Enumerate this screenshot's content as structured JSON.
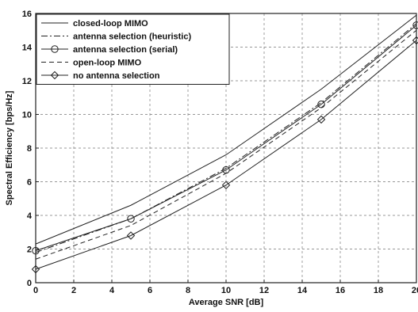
{
  "chart_data": {
    "type": "line",
    "title": "",
    "xlabel": "Average SNR [dB]",
    "ylabel": "Spectral Efficiency [bps/Hz]",
    "xlim": [
      0,
      20
    ],
    "ylim": [
      0,
      16
    ],
    "xticks": [
      "0",
      "2",
      "4",
      "6",
      "8",
      "10",
      "12",
      "14",
      "16",
      "18",
      "20"
    ],
    "yticks": [
      "0",
      "2",
      "4",
      "6",
      "8",
      "10",
      "12",
      "14",
      "16"
    ],
    "grid": true,
    "legend_position": "top-left",
    "x": [
      0,
      5,
      10,
      15,
      20
    ],
    "series": [
      {
        "name": "closed-loop MIMO",
        "values": [
          2.3,
          4.6,
          7.6,
          11.5,
          15.9
        ],
        "style": "solid",
        "marker": "none"
      },
      {
        "name": "antenna selection (heuristic)",
        "values": [
          1.8,
          3.8,
          6.8,
          10.7,
          15.4
        ],
        "style": "dashdot",
        "marker": "none"
      },
      {
        "name": "antenna selection (serial)",
        "values": [
          1.9,
          3.8,
          6.7,
          10.6,
          15.3
        ],
        "style": "solid",
        "marker": "circle"
      },
      {
        "name": "open-loop MIMO",
        "values": [
          1.4,
          3.4,
          6.5,
          10.4,
          15.0
        ],
        "style": "dashed",
        "marker": "none"
      },
      {
        "name": "no antenna selection",
        "values": [
          0.8,
          2.8,
          5.8,
          9.7,
          14.4
        ],
        "style": "solid",
        "marker": "diamond"
      }
    ]
  }
}
